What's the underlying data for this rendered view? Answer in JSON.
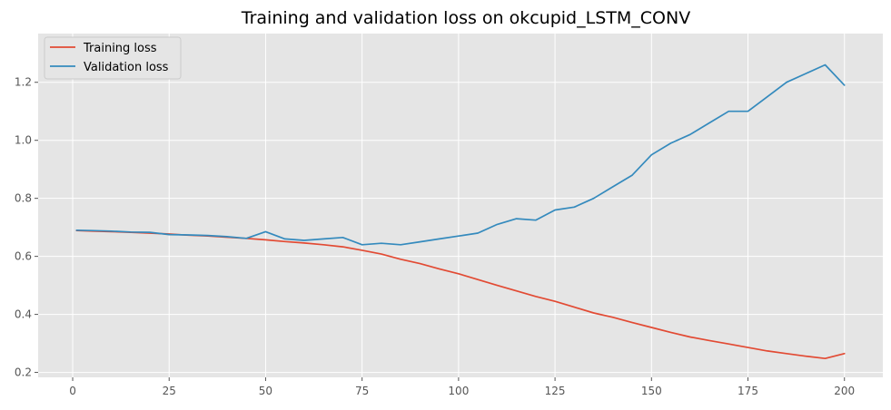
{
  "chart_data": {
    "type": "line",
    "title": "Training and validation loss on okcupid_LSTM_CONV",
    "xlabel": "",
    "ylabel": "",
    "xlim": [
      -8.95,
      209.95
    ],
    "ylim": [
      0.183,
      1.368
    ],
    "xticks": [
      0,
      25,
      50,
      75,
      100,
      125,
      150,
      175,
      200
    ],
    "yticks": [
      0.2,
      0.4,
      0.6,
      0.8,
      1.0,
      1.2
    ],
    "ytick_labels": [
      "0.2",
      "0.4",
      "0.6",
      "0.8",
      "1.0",
      "1.2"
    ],
    "grid": true,
    "legend_position": "top-left",
    "x": [
      1,
      5,
      10,
      15,
      20,
      25,
      30,
      35,
      40,
      45,
      50,
      55,
      60,
      65,
      70,
      75,
      80,
      85,
      90,
      95,
      100,
      105,
      110,
      115,
      120,
      125,
      130,
      135,
      140,
      145,
      150,
      155,
      160,
      165,
      170,
      175,
      180,
      185,
      190,
      195,
      200
    ],
    "series": [
      {
        "name": "Training loss",
        "color": "#E24A33",
        "values": [
          0.689,
          0.687,
          0.685,
          0.683,
          0.68,
          0.677,
          0.673,
          0.67,
          0.666,
          0.662,
          0.657,
          0.651,
          0.646,
          0.64,
          0.633,
          0.621,
          0.608,
          0.59,
          0.575,
          0.557,
          0.54,
          0.52,
          0.5,
          0.481,
          0.462,
          0.445,
          0.425,
          0.405,
          0.39,
          0.372,
          0.355,
          0.338,
          0.322,
          0.31,
          0.298,
          0.286,
          0.274,
          0.265,
          0.256,
          0.248,
          0.265
        ]
      },
      {
        "name": "Validation loss",
        "color": "#348ABD",
        "values": [
          0.69,
          0.689,
          0.687,
          0.684,
          0.683,
          0.675,
          0.674,
          0.672,
          0.668,
          0.662,
          0.685,
          0.66,
          0.655,
          0.66,
          0.665,
          0.64,
          0.645,
          0.64,
          0.65,
          0.66,
          0.67,
          0.68,
          0.71,
          0.73,
          0.725,
          0.76,
          0.77,
          0.8,
          0.84,
          0.88,
          0.95,
          0.99,
          1.02,
          1.06,
          1.1,
          1.1,
          1.15,
          1.2,
          1.23,
          1.26,
          1.19
        ]
      }
    ]
  }
}
